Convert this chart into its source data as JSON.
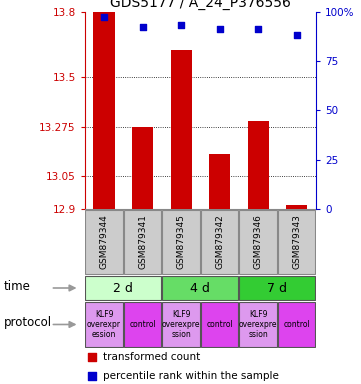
{
  "title": "GDS5177 / A_24_P376556",
  "samples": [
    "GSM879344",
    "GSM879341",
    "GSM879345",
    "GSM879342",
    "GSM879346",
    "GSM879343"
  ],
  "bar_values": [
    13.8,
    13.275,
    13.625,
    13.15,
    13.3,
    12.92
  ],
  "percentile_values": [
    97,
    92,
    93,
    91,
    91,
    88
  ],
  "ylim_left": [
    12.9,
    13.8
  ],
  "ylim_right": [
    0,
    100
  ],
  "yticks_left": [
    12.9,
    13.05,
    13.275,
    13.5,
    13.8
  ],
  "ytick_labels_left": [
    "12.9",
    "13.05",
    "13.275",
    "13.5",
    "13.8"
  ],
  "yticks_right": [
    0,
    25,
    50,
    75,
    100
  ],
  "ytick_labels_right": [
    "0",
    "25",
    "50",
    "75",
    "100%"
  ],
  "bar_color": "#cc0000",
  "dot_color": "#0000cc",
  "time_groups": [
    {
      "label": "2 d",
      "start": 0,
      "end": 2,
      "color": "#ccffcc"
    },
    {
      "label": "4 d",
      "start": 2,
      "end": 4,
      "color": "#66dd66"
    },
    {
      "label": "7 d",
      "start": 4,
      "end": 6,
      "color": "#33cc33"
    }
  ],
  "protocol_colors": [
    "#dd99ee",
    "#dd44ee"
  ],
  "protocol_labels": [
    "KLF9\noverexpr\nession",
    "control",
    "KLF9\noverexpre\nssion",
    "control",
    "KLF9\noverexpre\nssion",
    "control"
  ],
  "legend_bar_label": "transformed count",
  "legend_dot_label": "percentile rank within the sample",
  "background_color": "#ffffff",
  "label_time": "time",
  "label_protocol": "protocol",
  "grid_dotted": [
    13.05,
    13.275,
    13.5
  ],
  "sample_box_color": "#cccccc",
  "sample_box_edge": "#888888"
}
